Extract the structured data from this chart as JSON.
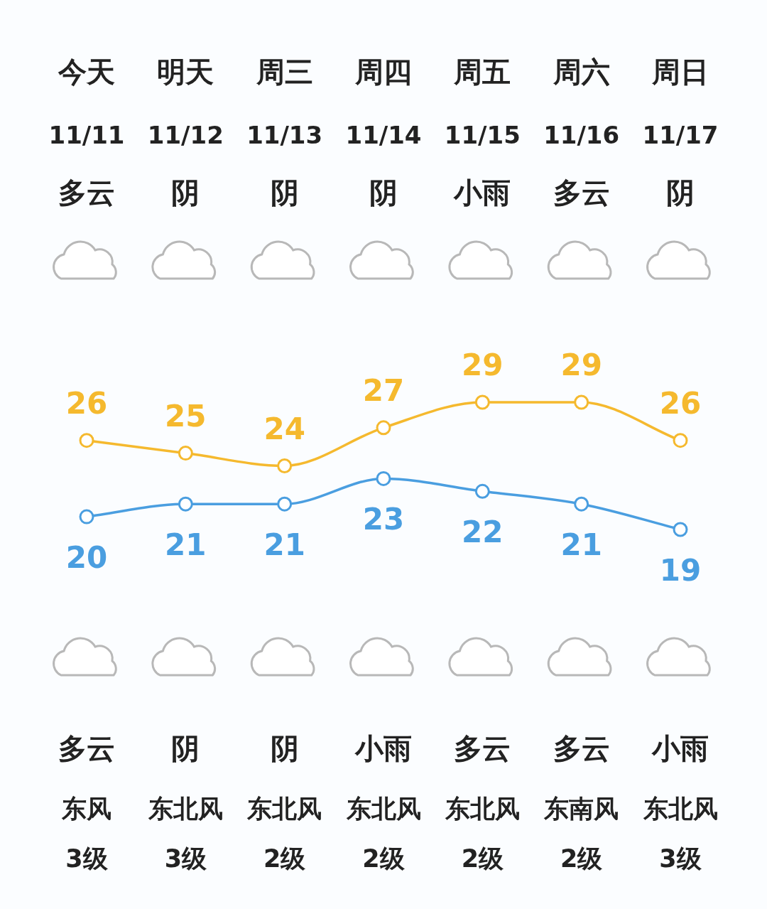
{
  "chart_data": {
    "type": "line",
    "categories": [
      "今天",
      "明天",
      "周三",
      "周四",
      "周五",
      "周六",
      "周日"
    ],
    "series": [
      {
        "color": "#f5b92e",
        "values": [
          26,
          25,
          24,
          27,
          29,
          29,
          26
        ]
      },
      {
        "color": "#4a9ee0",
        "values": [
          20,
          21,
          21,
          23,
          22,
          21,
          19
        ]
      }
    ],
    "data_labels": true,
    "marker": "circle",
    "line_style": "solid",
    "annotations": [
      "11/11",
      "11/12",
      "11/13",
      "11/14",
      "11/15",
      "11/16",
      "11/17",
      "多云",
      "阴",
      "阴",
      "阴",
      "小雨",
      "多云",
      "阴",
      "多云",
      "阴",
      "阴",
      "小雨",
      "多云",
      "多云",
      "小雨",
      "东风",
      "东北风",
      "东北风",
      "东北风",
      "东北风",
      "东南风",
      "东北风",
      "3级",
      "3级",
      "2级",
      "2级",
      "2级",
      "2级",
      "3级"
    ]
  }
}
